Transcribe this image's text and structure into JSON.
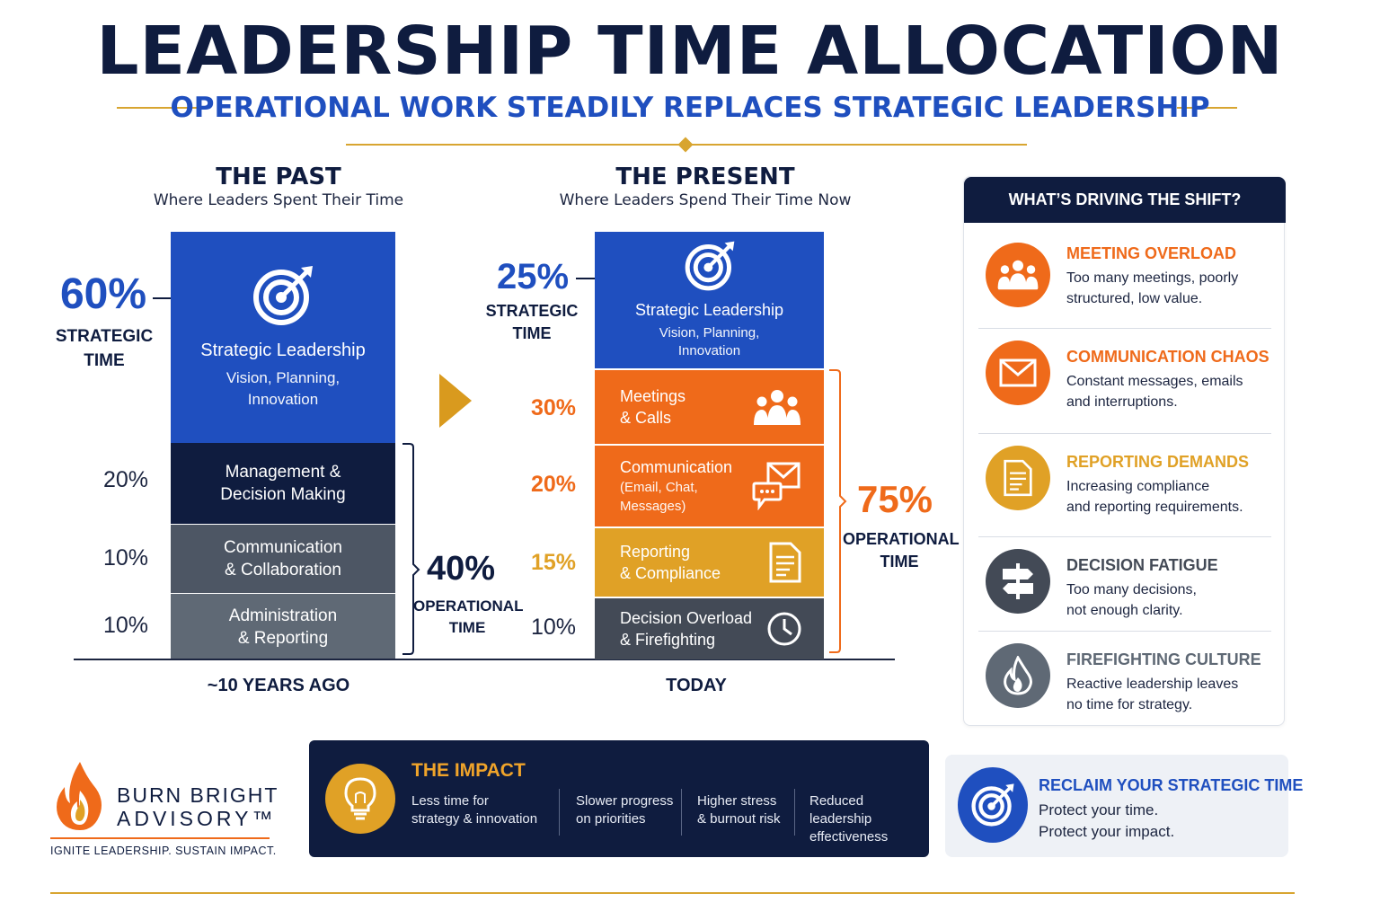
{
  "header": {
    "title": "LEADERSHIP TIME ALLOCATION",
    "subtitle": "OPERATIONAL WORK STEADILY REPLACES STRATEGIC LEADERSHIP"
  },
  "colors": {
    "navy": "#0f1c3f",
    "blue": "#1f4fbf",
    "orange": "#ef6a1a",
    "gold": "#e0a126",
    "slate": "#4d5664",
    "gray": "#5f6975",
    "dark_gray": "#434a56"
  },
  "chart_data": [
    {
      "type": "bar",
      "stacked": true,
      "title": "THE PAST",
      "subtitle": "Where Leaders Spent Their Time",
      "category": "~10 YEARS AGO",
      "segments": [
        {
          "label": "Strategic Leadership",
          "description": "Vision, Planning,\nInnovation",
          "value": 60,
          "value_label": "60%",
          "color": "#1f4fbf",
          "icon": "target-icon"
        },
        {
          "label": "Management &\nDecision Making",
          "value": 20,
          "value_label": "20%",
          "color": "#0f1c3f"
        },
        {
          "label": "Communication\n& Collaboration",
          "value": 10,
          "value_label": "10%",
          "color": "#4d5664"
        },
        {
          "label": "Administration\n& Reporting",
          "value": 10,
          "value_label": "10%",
          "color": "#5f6975"
        }
      ],
      "groups": [
        {
          "value_label": "60%",
          "label": "STRATEGIC\nTIME"
        },
        {
          "value_label": "40%",
          "label": "OPERATIONAL\nTIME"
        }
      ]
    },
    {
      "type": "bar",
      "stacked": true,
      "title": "THE PRESENT",
      "subtitle": "Where Leaders Spend Their Time Now",
      "category": "TODAY",
      "segments": [
        {
          "label": "Strategic Leadership",
          "description": "Vision, Planning,\nInnovation",
          "value": 25,
          "value_label": "25%",
          "color": "#1f4fbf",
          "icon": "target-icon"
        },
        {
          "label": "Meetings\n& Calls",
          "value": 30,
          "value_label": "30%",
          "color": "#ef6a1a",
          "icon": "people-icon"
        },
        {
          "label": "Communication",
          "description": "(Email, Chat,\nMessages)",
          "value": 20,
          "value_label": "20%",
          "color": "#ef6a1a",
          "icon": "message-icon"
        },
        {
          "label": "Reporting\n& Compliance",
          "value": 15,
          "value_label": "15%",
          "color": "#e0a126",
          "icon": "document-icon"
        },
        {
          "label": "Decision Overload\n& Firefighting",
          "value": 10,
          "value_label": "10%",
          "color": "#434a56",
          "icon": "clock-icon"
        }
      ],
      "groups": [
        {
          "value_label": "25%",
          "label": "STRATEGIC\nTIME"
        },
        {
          "value_label": "75%",
          "label": "OPERATIONAL\nTIME"
        }
      ]
    }
  ],
  "drivers": {
    "heading": "WHAT’S DRIVING THE SHIFT?",
    "items": [
      {
        "title": "MEETING OVERLOAD",
        "desc": "Too many meetings, poorly\nstructured, low value.",
        "color": "#ef6a1a",
        "icon": "people-icon"
      },
      {
        "title": "COMMUNICATION CHAOS",
        "desc": "Constant messages, emails\nand interruptions.",
        "color": "#ef6a1a",
        "icon": "mail-icon"
      },
      {
        "title": "REPORTING DEMANDS",
        "desc": "Increasing compliance\nand reporting requirements.",
        "color": "#e0a126",
        "icon": "document-icon"
      },
      {
        "title": "DECISION FATIGUE",
        "desc": "Too many decisions,\nnot enough clarity.",
        "color": "#434a56",
        "icon": "signpost-icon"
      },
      {
        "title": "FIREFIGHTING CULTURE",
        "desc": "Reactive leadership leaves\nno time for strategy.",
        "color": "#5f6975",
        "icon": "flame-icon"
      }
    ]
  },
  "impact": {
    "title": "THE IMPACT",
    "items": [
      "Less time for\nstrategy & innovation",
      "Slower progress\non priorities",
      "Higher stress\n& burnout risk",
      "Reduced leadership\neffectiveness"
    ]
  },
  "reclaim": {
    "title": "RECLAIM YOUR STRATEGIC TIME",
    "line1": "Protect your time.",
    "line2": "Protect your impact."
  },
  "brand": {
    "name_line1": "BURN BRIGHT",
    "name_line2": "ADVISORY™",
    "tagline": "IGNITE LEADERSHIP. SUSTAIN IMPACT."
  }
}
